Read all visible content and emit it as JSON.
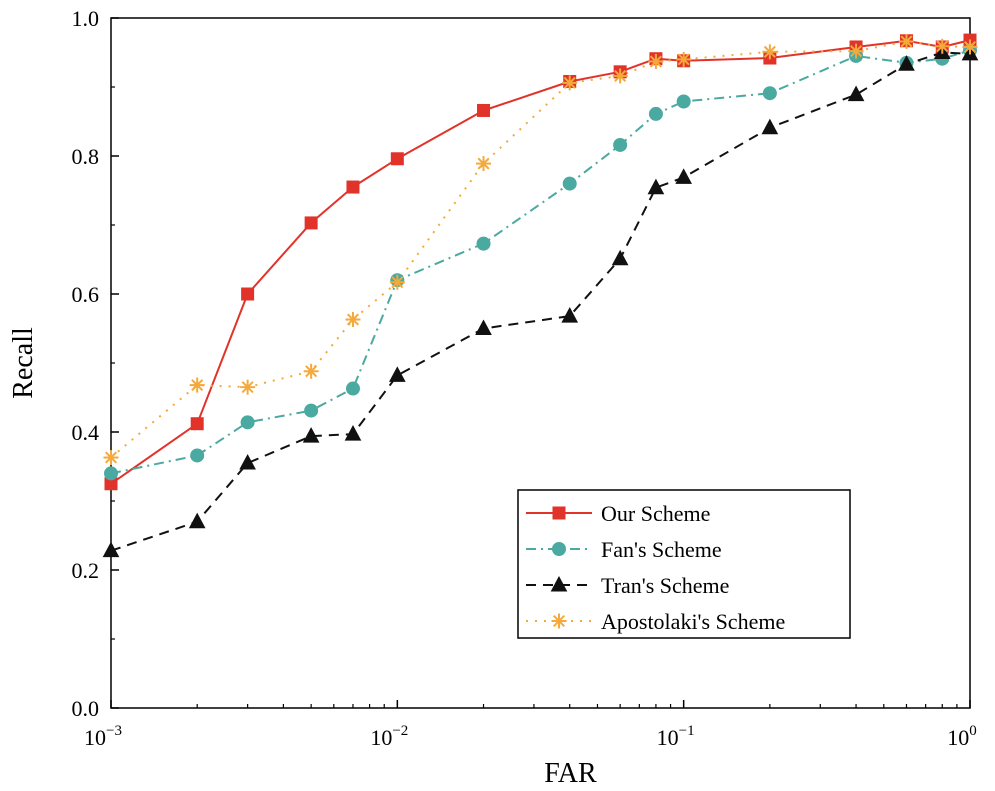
{
  "chart_data": {
    "type": "line",
    "title": "",
    "xlabel": "FAR",
    "ylabel": "Recall",
    "xscale": "log",
    "xlim": [
      0.001,
      1
    ],
    "ylim": [
      0.0,
      1.0
    ],
    "grid": false,
    "legend_position": "bottom-right",
    "x_ticks": [
      {
        "value": 0.001,
        "base": "10",
        "exp": "−3"
      },
      {
        "value": 0.01,
        "base": "10",
        "exp": "−2"
      },
      {
        "value": 0.1,
        "base": "10",
        "exp": "−1"
      },
      {
        "value": 1,
        "base": "10",
        "exp": "0"
      }
    ],
    "y_ticks": [
      {
        "value": 0.0,
        "label": "0.0"
      },
      {
        "value": 0.2,
        "label": "0.2"
      },
      {
        "value": 0.4,
        "label": "0.4"
      },
      {
        "value": 0.6,
        "label": "0.6"
      },
      {
        "value": 0.8,
        "label": "0.8"
      },
      {
        "value": 1.0,
        "label": "1.0"
      }
    ],
    "series": [
      {
        "name": "Our Scheme",
        "color": "#e2332a",
        "marker": "square",
        "dash": "",
        "x": [
          0.001,
          0.002,
          0.003,
          0.005,
          0.007,
          0.01,
          0.02,
          0.04,
          0.06,
          0.08,
          0.1,
          0.2,
          0.4,
          0.6,
          0.8,
          1.0
        ],
        "y": [
          0.325,
          0.412,
          0.6,
          0.703,
          0.755,
          0.796,
          0.866,
          0.908,
          0.922,
          0.941,
          0.938,
          0.942,
          0.958,
          0.967,
          0.958,
          0.968
        ]
      },
      {
        "name": "Fan's Scheme",
        "color": "#4aa9a0",
        "marker": "circle",
        "dash": "10 5 2 5",
        "x": [
          0.001,
          0.002,
          0.003,
          0.005,
          0.007,
          0.01,
          0.02,
          0.04,
          0.06,
          0.08,
          0.1,
          0.2,
          0.4,
          0.6,
          0.8,
          1.0
        ],
        "y": [
          0.34,
          0.366,
          0.414,
          0.431,
          0.463,
          0.62,
          0.673,
          0.76,
          0.816,
          0.861,
          0.879,
          0.891,
          0.945,
          0.935,
          0.941,
          0.953
        ]
      },
      {
        "name": "Tran's Scheme",
        "color": "#111111",
        "marker": "triangle",
        "dash": "10 7",
        "x": [
          0.001,
          0.002,
          0.003,
          0.005,
          0.007,
          0.01,
          0.02,
          0.04,
          0.06,
          0.08,
          0.1,
          0.2,
          0.4,
          0.6,
          0.8,
          1.0
        ],
        "y": [
          0.228,
          0.27,
          0.355,
          0.394,
          0.397,
          0.482,
          0.55,
          0.568,
          0.651,
          0.754,
          0.769,
          0.841,
          0.889,
          0.933,
          0.95,
          0.948
        ]
      },
      {
        "name": "Apostolaki's Scheme",
        "color": "#f4a93a",
        "marker": "asterisk",
        "dash": "2 7",
        "x": [
          0.001,
          0.002,
          0.003,
          0.005,
          0.007,
          0.01,
          0.02,
          0.04,
          0.06,
          0.08,
          0.1,
          0.2,
          0.4,
          0.6,
          0.8,
          1.0
        ],
        "y": [
          0.363,
          0.468,
          0.465,
          0.488,
          0.563,
          0.617,
          0.789,
          0.906,
          0.916,
          0.937,
          0.94,
          0.951,
          0.952,
          0.966,
          0.959,
          0.958
        ]
      }
    ]
  }
}
